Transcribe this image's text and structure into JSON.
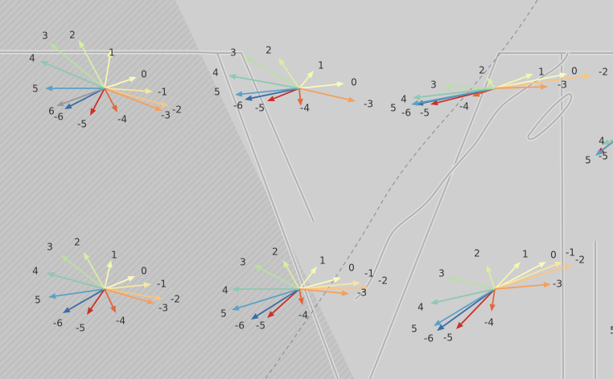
{
  "map": {
    "style": {
      "land_color": "#cfcfcf",
      "hatch_fill": "#c5c5c5",
      "hatch_line": "#b6b6b6",
      "boundary_color": "#b2b2b2",
      "boundary_highlight": "#dedede",
      "dashed_line_color": "#8a8a8a"
    },
    "arrow_colors": {
      "-6": "#3a6ea5",
      "-5": "#c8312a",
      "-4": "#e2673b",
      "-3": "#f2a05e",
      "-2": "#f8c584",
      "-1": "#f7e6a0",
      "0": "#f9f9bf",
      "1": "#f4f7b0",
      "2": "#d7eea4",
      "3": "#b8e0a2",
      "4": "#8dc9ae",
      "5": "#5da1c6"
    },
    "stars": [
      {
        "id": "top-left",
        "labels": [
          "3",
          "2",
          "1",
          "0",
          "-1",
          "-2",
          "-3",
          "-4",
          "-5",
          "-6",
          "6",
          "5",
          "4"
        ]
      },
      {
        "id": "top-center",
        "labels": [
          "3",
          "2",
          "1",
          "0",
          "-3",
          "-4",
          "-5",
          "-6",
          "5",
          "4"
        ]
      },
      {
        "id": "top-right",
        "labels": [
          "2",
          "1",
          "0",
          "-2",
          "-3",
          "-4",
          "-5",
          "-6",
          "5",
          "4",
          "3"
        ]
      },
      {
        "id": "edge-right",
        "labels": [
          "4",
          "-5",
          "5"
        ]
      },
      {
        "id": "bottom-left",
        "labels": [
          "3",
          "2",
          "1",
          "0",
          "-1",
          "-2",
          "-3",
          "-4",
          "-5",
          "-6",
          "5",
          "4"
        ]
      },
      {
        "id": "bottom-center",
        "labels": [
          "3",
          "2",
          "1",
          "0",
          "-1",
          "-2",
          "-3",
          "-4",
          "-5",
          "-6",
          "5",
          "4"
        ]
      },
      {
        "id": "bottom-right",
        "labels": [
          "2",
          "1",
          "0",
          "-1",
          "-2",
          "-3",
          "-4",
          "-5",
          "-6",
          "5",
          "4",
          "3"
        ]
      },
      {
        "id": "bottom-edge",
        "labels": [
          "5"
        ]
      }
    ]
  }
}
